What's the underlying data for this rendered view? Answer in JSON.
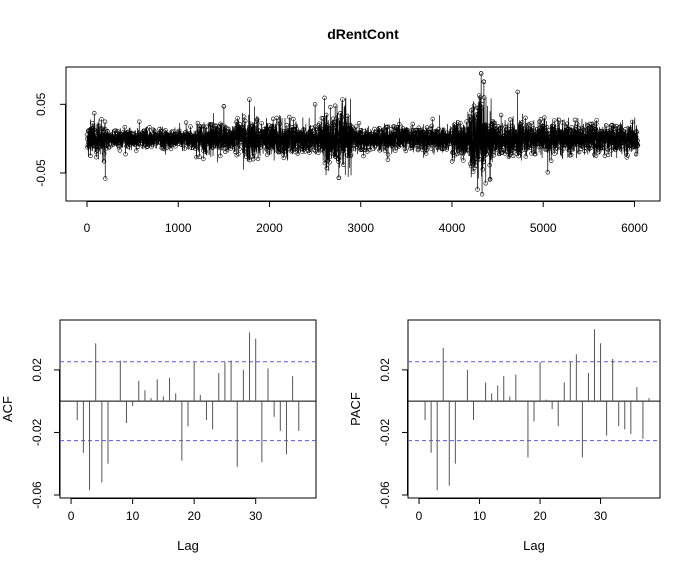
{
  "title": "dRentCont",
  "chart_data": [
    {
      "type": "line",
      "title": "dRentCont",
      "xlabel": "",
      "ylabel": "",
      "xlim": [
        0,
        6050
      ],
      "ylim": [
        -0.085,
        0.1
      ],
      "xticks": [
        0,
        1000,
        2000,
        3000,
        4000,
        5000,
        6000
      ],
      "xtick_labels": [
        "0",
        "1000",
        "2000",
        "3000",
        "4000",
        "5000",
        "6000"
      ],
      "yticks": [
        -0.05,
        0.05
      ],
      "ytick_labels": [
        "-0.05",
        "0.05"
      ],
      "n": 6040,
      "markers": "open-circle",
      "volatility_profile": [
        {
          "x": [
            0,
            200
          ],
          "sd": 0.012
        },
        {
          "x": [
            200,
            1200
          ],
          "sd": 0.007
        },
        {
          "x": [
            1200,
            1700
          ],
          "sd": 0.011
        },
        {
          "x": [
            1700,
            1900
          ],
          "sd": 0.015
        },
        {
          "x": [
            1900,
            2600
          ],
          "sd": 0.012
        },
        {
          "x": [
            2600,
            2900
          ],
          "sd": 0.02
        },
        {
          "x": [
            2900,
            4000
          ],
          "sd": 0.009
        },
        {
          "x": [
            4000,
            4200
          ],
          "sd": 0.014
        },
        {
          "x": [
            4200,
            4450
          ],
          "sd": 0.026
        },
        {
          "x": [
            4450,
            5000
          ],
          "sd": 0.012
        },
        {
          "x": [
            5000,
            6040
          ],
          "sd": 0.011
        }
      ],
      "spikes": [
        {
          "x": 80,
          "y": 0.037
        },
        {
          "x": 200,
          "y": -0.058
        },
        {
          "x": 1500,
          "y": 0.047
        },
        {
          "x": 1780,
          "y": 0.057
        },
        {
          "x": 2500,
          "y": 0.05
        },
        {
          "x": 2720,
          "y": 0.048
        },
        {
          "x": 2760,
          "y": -0.057
        },
        {
          "x": 2800,
          "y": 0.057
        },
        {
          "x": 4280,
          "y": -0.074
        },
        {
          "x": 4300,
          "y": 0.063
        },
        {
          "x": 4320,
          "y": 0.095
        },
        {
          "x": 4330,
          "y": -0.081
        },
        {
          "x": 4350,
          "y": 0.083
        },
        {
          "x": 4370,
          "y": -0.065
        },
        {
          "x": 4720,
          "y": 0.068
        },
        {
          "x": 5050,
          "y": -0.049
        }
      ]
    },
    {
      "type": "bar",
      "name": "acf",
      "xlabel": "Lag",
      "ylabel": "ACF",
      "xlim": [
        -0.5,
        38.5
      ],
      "ylim": [
        -0.06,
        0.05
      ],
      "xticks": [
        0,
        10,
        20,
        30
      ],
      "xtick_labels": [
        "0",
        "10",
        "20",
        "30"
      ],
      "yticks": [
        -0.06,
        -0.02,
        0.02
      ],
      "ytick_labels": [
        "-0.06",
        "-0.02",
        "0.02"
      ],
      "ci": 0.0252,
      "ci_color": "#5a5ae0",
      "lags": [
        1,
        2,
        3,
        4,
        5,
        6,
        7,
        8,
        9,
        10,
        11,
        12,
        13,
        14,
        15,
        16,
        17,
        18,
        19,
        20,
        21,
        22,
        23,
        24,
        25,
        26,
        27,
        28,
        29,
        30,
        31,
        32,
        33,
        34,
        35,
        36,
        37,
        38
      ],
      "values": [
        -0.012,
        -0.033,
        -0.057,
        0.037,
        -0.052,
        -0.04,
        0.0,
        0.026,
        -0.014,
        -0.003,
        0.013,
        0.007,
        0.002,
        0.014,
        0.003,
        0.015,
        0.005,
        -0.038,
        -0.016,
        0.025,
        0.004,
        -0.012,
        -0.018,
        0.018,
        0.025,
        0.026,
        -0.042,
        0.02,
        0.044,
        0.04,
        -0.039,
        0.021,
        -0.01,
        -0.019,
        -0.034,
        0.016,
        -0.019,
        0.0
      ]
    },
    {
      "type": "bar",
      "name": "pacf",
      "xlabel": "Lag",
      "ylabel": "PACF",
      "xlim": [
        -0.5,
        38.5
      ],
      "ylim": [
        -0.06,
        0.05
      ],
      "xticks": [
        0,
        10,
        20,
        30
      ],
      "xtick_labels": [
        "0",
        "10",
        "20",
        "30"
      ],
      "yticks": [
        -0.06,
        -0.02,
        0.02
      ],
      "ytick_labels": [
        "-0.06",
        "-0.02",
        "0.02"
      ],
      "ci": 0.0252,
      "ci_color": "#5a5ae0",
      "lags": [
        1,
        2,
        3,
        4,
        5,
        6,
        7,
        8,
        9,
        10,
        11,
        12,
        13,
        14,
        15,
        16,
        17,
        18,
        19,
        20,
        21,
        22,
        23,
        24,
        25,
        26,
        27,
        28,
        29,
        30,
        31,
        32,
        33,
        34,
        35,
        36,
        37,
        38
      ],
      "values": [
        -0.012,
        -0.033,
        -0.057,
        0.034,
        -0.054,
        -0.04,
        0.0,
        0.02,
        -0.012,
        0.0,
        0.012,
        0.005,
        0.01,
        0.016,
        0.003,
        0.017,
        0.0,
        -0.036,
        -0.013,
        0.025,
        0.001,
        -0.005,
        -0.016,
        0.012,
        0.025,
        0.03,
        -0.036,
        0.018,
        0.046,
        0.037,
        -0.022,
        0.027,
        -0.016,
        -0.018,
        -0.021,
        0.009,
        -0.024,
        0.002
      ]
    }
  ]
}
